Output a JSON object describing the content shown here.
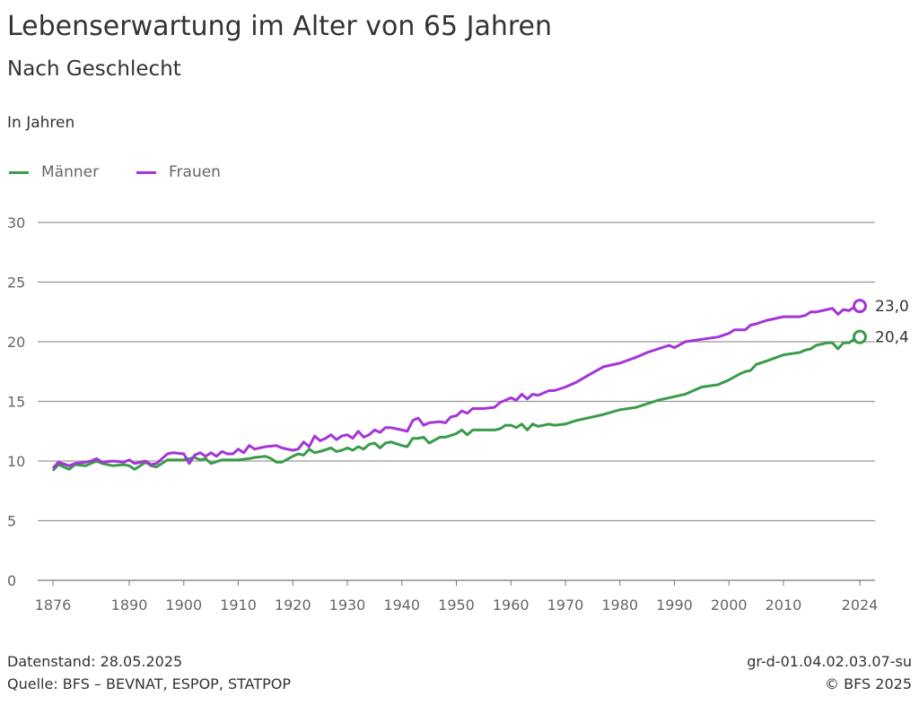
{
  "title": "Lebenserwartung im Alter von 65 Jahren",
  "subtitle": "Nach Geschlecht",
  "footer": {
    "left1": "Datenstand: 28.05.2025",
    "left2": "Quelle: BFS – BEVNAT, ESPOP, STATPOP",
    "right1": "gr-d-01.04.02.03.07-su",
    "right2": "© BFS 2025"
  },
  "chart_data": {
    "type": "line",
    "ylabel": "In Jahren",
    "xlim": [
      1876,
      2024
    ],
    "ylim": [
      0,
      30
    ],
    "xticks": [
      1876,
      1890,
      1900,
      1910,
      1920,
      1930,
      1940,
      1950,
      1960,
      1970,
      1980,
      1990,
      2000,
      2010,
      2024
    ],
    "yticks": [
      0,
      5,
      10,
      15,
      20,
      25,
      30
    ],
    "grid": "horizontal",
    "legend": "top-left",
    "end_labels": [
      "23,0",
      "20,4"
    ],
    "series": [
      {
        "name": "Männer",
        "color": "#3a9b4a",
        "x": [
          1876,
          1877,
          1879,
          1880,
          1882,
          1884,
          1885,
          1887,
          1889,
          1890,
          1891,
          1893,
          1894,
          1895,
          1897,
          1900,
          1902,
          1903,
          1904,
          1905,
          1907,
          1910,
          1912,
          1913,
          1915,
          1916,
          1917,
          1918,
          1920,
          1921,
          1922,
          1923,
          1924,
          1925,
          1927,
          1928,
          1929,
          1930,
          1931,
          1932,
          1933,
          1934,
          1935,
          1936,
          1937,
          1938,
          1940,
          1941,
          1942,
          1943,
          1944,
          1945,
          1947,
          1948,
          1950,
          1951,
          1952,
          1953,
          1955,
          1957,
          1958,
          1959,
          1960,
          1961,
          1962,
          1963,
          1964,
          1965,
          1967,
          1968,
          1970,
          1972,
          1975,
          1977,
          1980,
          1983,
          1985,
          1987,
          1990,
          1992,
          1995,
          1998,
          2000,
          2002,
          2003,
          2004,
          2005,
          2007,
          2010,
          2013,
          2014,
          2015,
          2016,
          2018,
          2019,
          2020,
          2021,
          2022,
          2023,
          2024
        ],
        "y": [
          9.2,
          9.7,
          9.3,
          9.7,
          9.6,
          10.0,
          9.8,
          9.6,
          9.7,
          9.6,
          9.3,
          9.9,
          9.6,
          9.5,
          10.1,
          10.1,
          10.3,
          10.1,
          10.2,
          9.8,
          10.1,
          10.1,
          10.2,
          10.3,
          10.4,
          10.2,
          9.9,
          9.9,
          10.4,
          10.6,
          10.5,
          11.0,
          10.7,
          10.8,
          11.1,
          10.8,
          10.9,
          11.1,
          10.9,
          11.2,
          11.0,
          11.4,
          11.5,
          11.1,
          11.5,
          11.6,
          11.3,
          11.2,
          11.9,
          11.9,
          12.0,
          11.5,
          12.0,
          12.0,
          12.3,
          12.6,
          12.2,
          12.6,
          12.6,
          12.6,
          12.7,
          13.0,
          13.0,
          12.8,
          13.1,
          12.6,
          13.1,
          12.9,
          13.1,
          13.0,
          13.1,
          13.4,
          13.7,
          13.9,
          14.3,
          14.5,
          14.8,
          15.1,
          15.4,
          15.6,
          16.2,
          16.4,
          16.8,
          17.3,
          17.5,
          17.6,
          18.1,
          18.4,
          18.9,
          19.1,
          19.3,
          19.4,
          19.7,
          19.9,
          19.9,
          19.4,
          19.9,
          19.9,
          20.2,
          20.4
        ]
      },
      {
        "name": "Frauen",
        "color": "#a435d6",
        "x": [
          1876,
          1877,
          1879,
          1880,
          1882,
          1883,
          1884,
          1885,
          1887,
          1889,
          1890,
          1891,
          1893,
          1894,
          1895,
          1897,
          1898,
          1900,
          1901,
          1902,
          1903,
          1904,
          1905,
          1906,
          1907,
          1908,
          1909,
          1910,
          1911,
          1912,
          1913,
          1915,
          1917,
          1918,
          1920,
          1921,
          1922,
          1923,
          1924,
          1925,
          1926,
          1927,
          1928,
          1929,
          1930,
          1931,
          1932,
          1933,
          1934,
          1935,
          1936,
          1937,
          1938,
          1940,
          1941,
          1942,
          1943,
          1944,
          1945,
          1947,
          1948,
          1949,
          1950,
          1951,
          1952,
          1953,
          1955,
          1957,
          1958,
          1959,
          1960,
          1961,
          1962,
          1963,
          1964,
          1965,
          1967,
          1968,
          1970,
          1972,
          1975,
          1977,
          1980,
          1983,
          1985,
          1987,
          1989,
          1990,
          1992,
          1995,
          1998,
          2000,
          2001,
          2003,
          2004,
          2005,
          2007,
          2010,
          2013,
          2014,
          2015,
          2016,
          2018,
          2019,
          2020,
          2021,
          2022,
          2023,
          2024
        ],
        "y": [
          9.4,
          9.9,
          9.6,
          9.8,
          9.9,
          10.0,
          10.2,
          9.9,
          10.0,
          9.9,
          10.1,
          9.8,
          10.0,
          9.7,
          9.8,
          10.6,
          10.7,
          10.6,
          9.8,
          10.5,
          10.7,
          10.4,
          10.7,
          10.4,
          10.8,
          10.6,
          10.6,
          11.0,
          10.7,
          11.3,
          11.0,
          11.2,
          11.3,
          11.1,
          10.9,
          11.0,
          11.6,
          11.2,
          12.1,
          11.7,
          11.9,
          12.2,
          11.8,
          12.1,
          12.2,
          11.9,
          12.5,
          12.0,
          12.2,
          12.6,
          12.4,
          12.8,
          12.8,
          12.6,
          12.5,
          13.4,
          13.6,
          13.0,
          13.2,
          13.3,
          13.2,
          13.7,
          13.8,
          14.2,
          14.0,
          14.4,
          14.4,
          14.5,
          14.9,
          15.1,
          15.3,
          15.1,
          15.6,
          15.2,
          15.6,
          15.5,
          15.9,
          15.9,
          16.2,
          16.6,
          17.4,
          17.9,
          18.2,
          18.7,
          19.1,
          19.4,
          19.7,
          19.5,
          20.0,
          20.2,
          20.4,
          20.7,
          21.0,
          21.0,
          21.4,
          21.5,
          21.8,
          22.1,
          22.1,
          22.2,
          22.5,
          22.5,
          22.7,
          22.8,
          22.3,
          22.7,
          22.6,
          22.9,
          23.0
        ]
      }
    ]
  }
}
